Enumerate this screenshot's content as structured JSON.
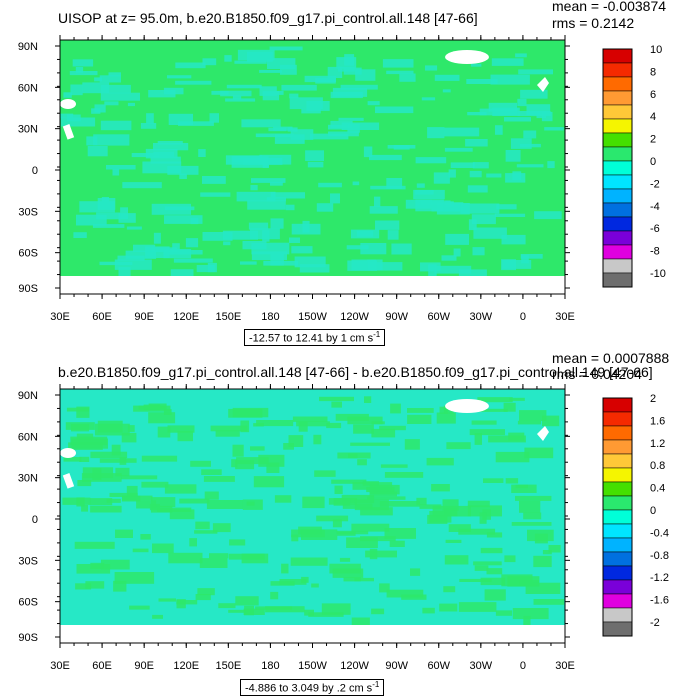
{
  "panels": [
    {
      "title": "UISOP at z=  95.0m, b.e20.B1850.f09_g17.pi_control.all.148 [47-66]",
      "stats": {
        "mean": "mean = -0.003874",
        "rms": "rms = 0.2142"
      },
      "range_label": "-12.57 to 12.41 by 1 cm s",
      "range_unit_exp": "-1",
      "colorbar": {
        "levels": [
          "10",
          "8",
          "6",
          "4",
          "2",
          "0",
          "-2",
          "-4",
          "-6",
          "-8",
          "-10"
        ],
        "colors": [
          "#d70000",
          "#f52a00",
          "#ff6a00",
          "#ff9a33",
          "#ffc838",
          "#f5f500",
          "#44e000",
          "#2ae86e",
          "#00ffd8",
          "#00e5ff",
          "#00b3ff",
          "#0070e0",
          "#0028e0",
          "#7a00d9",
          "#e000e0",
          "#c8c8c8",
          "#6e6e6e"
        ]
      },
      "axes": {
        "yticks": [
          "90N",
          "60N",
          "30N",
          "0",
          "30S",
          "60S",
          "90S"
        ],
        "xticks": [
          "30E",
          "60E",
          "90E",
          "120E",
          "150E",
          "180",
          "150W",
          "120W",
          "90W",
          "60W",
          "30W",
          "0",
          "30E"
        ]
      },
      "base_fill": "#2ee86a",
      "pattern_fill": "#26e8c6"
    },
    {
      "title": "b.e20.B1850.f09_g17.pi_control.all.148 [47-66] - b.e20.B1850.f09_g17.pi_control.all.149 [47-66]",
      "stats": {
        "mean": "mean = 0.0007888",
        "rms": "rms = 0.04204"
      },
      "range_label": "-4.886 to 3.049 by .2 cm s",
      "range_unit_exp": "-1",
      "colorbar": {
        "levels": [
          "2",
          "1.6",
          "1.2",
          "0.8",
          "0.4",
          "0",
          "-0.4",
          "-0.8",
          "-1.2",
          "-1.6",
          "-2"
        ],
        "colors": [
          "#d70000",
          "#f52a00",
          "#ff6a00",
          "#ff9a33",
          "#ffc838",
          "#f5f500",
          "#44e000",
          "#2ae86e",
          "#00ffd8",
          "#00e5ff",
          "#00b3ff",
          "#0070e0",
          "#0028e0",
          "#7a00d9",
          "#e000e0",
          "#c8c8c8",
          "#6e6e6e"
        ]
      },
      "axes": {
        "yticks": [
          "90N",
          "60N",
          "30N",
          "0",
          "30S",
          "60S",
          "90S"
        ],
        "xticks": [
          "30E",
          "60E",
          "90E",
          "120E",
          "150E",
          "180",
          "150W",
          "120W",
          "90W",
          "60W",
          "30W",
          "0",
          "30E"
        ]
      },
      "base_fill": "#26e8c6",
      "pattern_fill": "#2ee86a"
    }
  ],
  "chart_data": [
    {
      "type": "heatmap",
      "title": "UISOP at z=  95.0m, b.e20.B1850.f09_g17.pi_control.all.148 [47-66]",
      "xlabel": "",
      "ylabel": "",
      "x_ticks": [
        "30E",
        "60E",
        "90E",
        "120E",
        "150E",
        "180",
        "150W",
        "120W",
        "90W",
        "60W",
        "30W",
        "0",
        "30E"
      ],
      "y_ticks": [
        "90N",
        "60N",
        "30N",
        "0",
        "30S",
        "60S",
        "90S"
      ],
      "contour_range": {
        "min": -12.57,
        "max": 12.41,
        "interval": 1,
        "unit": "cm s-1"
      },
      "colorbar_levels": [
        10,
        8,
        6,
        4,
        2,
        0,
        -2,
        -4,
        -6,
        -8,
        -10
      ],
      "mean": -0.003874,
      "rms": 0.2142
    },
    {
      "type": "heatmap",
      "title": "b.e20.B1850.f09_g17.pi_control.all.148 [47-66] - b.e20.B1850.f09_g17.pi_control.all.149 [47-66]",
      "xlabel": "",
      "ylabel": "",
      "x_ticks": [
        "30E",
        "60E",
        "90E",
        "120E",
        "150E",
        "180",
        "150W",
        "120W",
        "90W",
        "60W",
        "30W",
        "0",
        "30E"
      ],
      "y_ticks": [
        "90N",
        "60N",
        "30N",
        "0",
        "30S",
        "60S",
        "90S"
      ],
      "contour_range": {
        "min": -4.886,
        "max": 3.049,
        "interval": 0.2,
        "unit": "cm s-1"
      },
      "colorbar_levels": [
        2,
        1.6,
        1.2,
        0.8,
        0.4,
        0,
        -0.4,
        -0.8,
        -1.2,
        -1.6,
        -2
      ],
      "mean": 0.0007888,
      "rms": 0.04204
    }
  ]
}
